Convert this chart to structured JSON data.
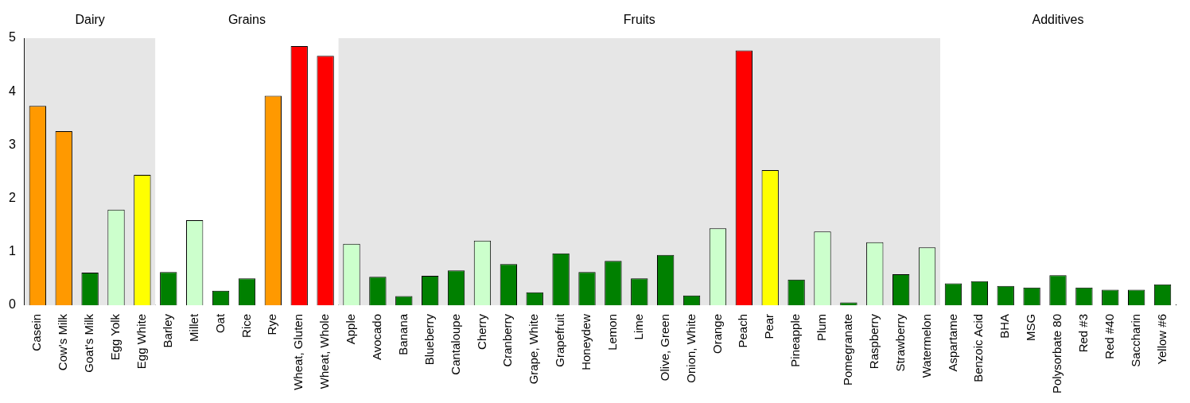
{
  "chart_data": {
    "type": "bar",
    "categories": [
      "Casein",
      "Cow's Milk",
      "Goat's Milk",
      "Egg Yolk",
      "Egg White",
      "Barley",
      "Millet",
      "Oat",
      "Rice",
      "Rye",
      "Wheat, Gluten",
      "Wheat, Whole",
      "Apple",
      "Avocado",
      "Banana",
      "Blueberry",
      "Cantaloupe",
      "Cherry",
      "Cranberry",
      "Grape, White",
      "Grapefruit",
      "Honeydew",
      "Lemon",
      "Lime",
      "Olive, Green",
      "Onion, White",
      "Orange",
      "Peach",
      "Pear",
      "Pineapple",
      "Plum",
      "Pomegranate",
      "Raspberry",
      "Strawberry",
      "Watermelon",
      "Aspartame",
      "Benzoic Acid",
      "BHA",
      "MSG",
      "Polysorbate 80",
      "Red #3",
      "Red #40",
      "Saccharin",
      "Yellow #6"
    ],
    "values": [
      3.73,
      3.26,
      0.61,
      1.79,
      2.44,
      0.62,
      1.59,
      0.27,
      0.5,
      3.92,
      4.85,
      4.67,
      1.15,
      0.53,
      0.17,
      0.55,
      0.65,
      1.21,
      0.77,
      0.24,
      0.97,
      0.62,
      0.83,
      0.5,
      0.94,
      0.18,
      1.44,
      4.77,
      2.53,
      0.48,
      1.38,
      0.05,
      1.18,
      0.58,
      1.08,
      0.41,
      0.45,
      0.36,
      0.33,
      0.56,
      0.33,
      0.29,
      0.29,
      0.39
    ],
    "colors": [
      "#ff9900",
      "#ff9900",
      "#008000",
      "#ccffcc",
      "#ffff00",
      "#008000",
      "#ccffcc",
      "#008000",
      "#008000",
      "#ff9900",
      "#ff0000",
      "#ff0000",
      "#ccffcc",
      "#008000",
      "#008000",
      "#008000",
      "#008000",
      "#ccffcc",
      "#008000",
      "#008000",
      "#008000",
      "#008000",
      "#008000",
      "#008000",
      "#008000",
      "#008000",
      "#ccffcc",
      "#ff0000",
      "#ffff00",
      "#008000",
      "#ccffcc",
      "#008000",
      "#ccffcc",
      "#008000",
      "#ccffcc",
      "#008000",
      "#008000",
      "#008000",
      "#008000",
      "#008000",
      "#008000",
      "#008000",
      "#008000",
      "#008000"
    ],
    "ylim": [
      0,
      5
    ],
    "yticks": [
      0,
      1,
      2,
      3,
      4,
      5
    ],
    "grid": false,
    "legend": false,
    "bands": [
      {
        "axis": "x",
        "from": "Casein",
        "to": "Egg White",
        "label": "Dairy",
        "color": "#e6e6e6"
      },
      {
        "axis": "x",
        "from": "Barley",
        "to": "Wheat, Whole",
        "label": "Grains",
        "color": "#ffffff"
      },
      {
        "axis": "x",
        "from": "Apple",
        "to": "Watermelon",
        "label": "Fruits",
        "color": "#e6e6e6"
      },
      {
        "axis": "x",
        "from": "Aspartame",
        "to": "Yellow #6",
        "label": "Additives",
        "color": "#ffffff"
      }
    ]
  }
}
